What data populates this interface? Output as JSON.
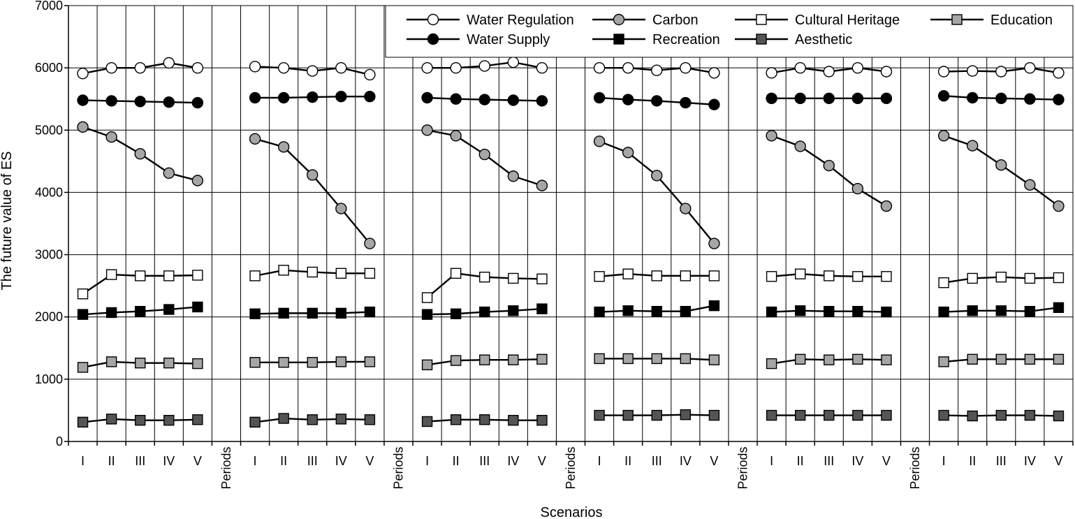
{
  "chart_data": {
    "type": "line",
    "ylabel": "The future value of ES",
    "xlabel": "Scenarios",
    "ylim": [
      0,
      7000
    ],
    "yticks": [
      0,
      1000,
      2000,
      3000,
      4000,
      5000,
      6000,
      7000
    ],
    "grid": true,
    "legend_position": "top-right",
    "scenarios": [
      "I",
      "II",
      "III",
      "IV",
      "V"
    ],
    "separator_label": "Periods",
    "series": [
      {
        "name": "Water Regulation",
        "marker": "circle",
        "color": "#ffffff",
        "groups": [
          [
            5910,
            6000,
            6000,
            6080,
            6000
          ],
          [
            6020,
            6000,
            5950,
            6000,
            5890
          ],
          [
            6000,
            6000,
            6030,
            6090,
            6000
          ],
          [
            6000,
            6000,
            5960,
            6000,
            5920
          ],
          [
            5920,
            6000,
            5940,
            6000,
            5940
          ],
          [
            5940,
            5950,
            5940,
            6000,
            5920
          ]
        ]
      },
      {
        "name": "Carbon",
        "marker": "circle",
        "color": "#a6a6a6",
        "groups": [
          [
            5050,
            4890,
            4620,
            4310,
            4190
          ],
          [
            4860,
            4730,
            4280,
            3740,
            3180
          ],
          [
            5000,
            4910,
            4610,
            4260,
            4110
          ],
          [
            4820,
            4640,
            4270,
            3740,
            3180
          ],
          [
            4910,
            4740,
            4430,
            4060,
            3780
          ],
          [
            4910,
            4750,
            4440,
            4120,
            3780
          ]
        ]
      },
      {
        "name": "Cultural Heritage",
        "marker": "square",
        "color": "#ffffff",
        "groups": [
          [
            2370,
            2680,
            2660,
            2660,
            2670
          ],
          [
            2660,
            2750,
            2720,
            2700,
            2700
          ],
          [
            2310,
            2700,
            2640,
            2620,
            2610
          ],
          [
            2650,
            2690,
            2660,
            2660,
            2660
          ],
          [
            2650,
            2690,
            2660,
            2650,
            2650
          ],
          [
            2550,
            2620,
            2640,
            2620,
            2630
          ]
        ]
      },
      {
        "name": "Education",
        "marker": "square",
        "color": "#a6a6a6",
        "groups": [
          [
            1190,
            1280,
            1260,
            1260,
            1250
          ],
          [
            1270,
            1270,
            1270,
            1280,
            1280
          ],
          [
            1230,
            1300,
            1310,
            1310,
            1320
          ],
          [
            1330,
            1330,
            1330,
            1330,
            1310
          ],
          [
            1250,
            1320,
            1310,
            1320,
            1310
          ],
          [
            1280,
            1320,
            1320,
            1320,
            1320
          ]
        ]
      },
      {
        "name": "Water Supply",
        "marker": "circle",
        "color": "#000000",
        "groups": [
          [
            5480,
            5470,
            5460,
            5450,
            5440
          ],
          [
            5520,
            5520,
            5530,
            5540,
            5540
          ],
          [
            5520,
            5500,
            5490,
            5480,
            5470
          ],
          [
            5520,
            5490,
            5470,
            5440,
            5410
          ],
          [
            5510,
            5510,
            5510,
            5510,
            5510
          ],
          [
            5550,
            5520,
            5510,
            5500,
            5490
          ]
        ]
      },
      {
        "name": "Recreation",
        "marker": "square",
        "color": "#000000",
        "groups": [
          [
            2040,
            2070,
            2090,
            2120,
            2160
          ],
          [
            2050,
            2060,
            2060,
            2060,
            2080
          ],
          [
            2040,
            2050,
            2080,
            2100,
            2130
          ],
          [
            2080,
            2100,
            2090,
            2090,
            2180
          ],
          [
            2080,
            2100,
            2090,
            2090,
            2080
          ],
          [
            2080,
            2100,
            2100,
            2090,
            2150
          ]
        ]
      },
      {
        "name": "Aesthetic",
        "marker": "square",
        "color": "#555555",
        "groups": [
          [
            310,
            360,
            340,
            340,
            350
          ],
          [
            310,
            370,
            350,
            360,
            350
          ],
          [
            320,
            350,
            350,
            340,
            340
          ],
          [
            420,
            420,
            420,
            430,
            420
          ],
          [
            420,
            420,
            420,
            420,
            420
          ],
          [
            420,
            410,
            420,
            420,
            410
          ]
        ]
      }
    ]
  }
}
